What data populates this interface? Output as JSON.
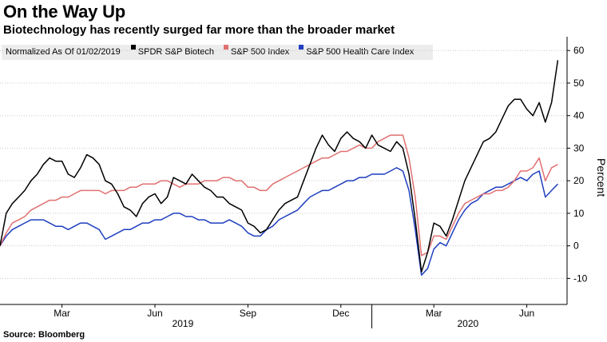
{
  "chart_data": {
    "type": "line",
    "title": "On the Way Up",
    "subtitle": "Biotechnology has recently surged far more than the broader market",
    "legend_prefix": "Normalized As Of 01/02/2019",
    "ylabel": "Percent",
    "ylim": [
      -18,
      63
    ],
    "xlim": [
      0,
      18.3
    ],
    "y_ticks": [
      -10,
      0,
      10,
      20,
      30,
      40,
      50,
      60
    ],
    "x_ticks": [
      {
        "label": "Mar",
        "x": 2
      },
      {
        "label": "Jun",
        "x": 5
      },
      {
        "label": "Sep",
        "x": 8
      },
      {
        "label": "Dec",
        "x": 11
      },
      {
        "label": "Mar",
        "x": 14
      },
      {
        "label": "Jun",
        "x": 17
      }
    ],
    "x_groups": [
      {
        "label": "2019",
        "x": 5.9
      },
      {
        "label": "2020",
        "x": 15.1
      }
    ],
    "year_divider_x": 12,
    "series": [
      {
        "name": "SPDR S&P Biotech",
        "color": "#000000",
        "x": [
          0,
          0.2,
          0.4,
          0.6,
          0.8,
          1.0,
          1.2,
          1.4,
          1.6,
          1.8,
          2.0,
          2.2,
          2.4,
          2.6,
          2.8,
          3.0,
          3.2,
          3.4,
          3.6,
          3.8,
          4.0,
          4.2,
          4.4,
          4.6,
          4.8,
          5.0,
          5.2,
          5.4,
          5.6,
          5.8,
          6.0,
          6.2,
          6.4,
          6.6,
          6.8,
          7.0,
          7.2,
          7.4,
          7.6,
          7.8,
          8.0,
          8.2,
          8.4,
          8.6,
          8.8,
          9.0,
          9.2,
          9.4,
          9.6,
          9.8,
          10.0,
          10.2,
          10.4,
          10.6,
          10.8,
          11.0,
          11.2,
          11.4,
          11.6,
          11.8,
          12.0,
          12.2,
          12.4,
          12.6,
          12.8,
          13.0,
          13.2,
          13.4,
          13.6,
          13.8,
          14.0,
          14.2,
          14.4,
          14.6,
          14.8,
          15.0,
          15.2,
          15.4,
          15.6,
          15.8,
          16.0,
          16.2,
          16.4,
          16.6,
          16.8,
          17.0,
          17.2,
          17.4,
          17.6,
          17.8,
          18.0
        ],
        "values": [
          0,
          10,
          13,
          15,
          17,
          20,
          22,
          25,
          27,
          26,
          26,
          22,
          21,
          24,
          28,
          27,
          25,
          20,
          19,
          16,
          12,
          11,
          9,
          13,
          15,
          16,
          13,
          15,
          21,
          20,
          19,
          22,
          20,
          18,
          17,
          15,
          15,
          13,
          12,
          11,
          7,
          6,
          4,
          5,
          8,
          11,
          13,
          14,
          15,
          20,
          25,
          30,
          34,
          31,
          29,
          33,
          35,
          33,
          32,
          30,
          34,
          31,
          30,
          29,
          32,
          30,
          22,
          8,
          -8,
          -2,
          7,
          6,
          3,
          8,
          14,
          20,
          24,
          28,
          32,
          33,
          35,
          39,
          43,
          45,
          45,
          42,
          40,
          44,
          38,
          44,
          57
        ]
      },
      {
        "name": "S&P 500 Index",
        "color": "#e07070",
        "x": [
          0,
          0.2,
          0.4,
          0.6,
          0.8,
          1.0,
          1.2,
          1.4,
          1.6,
          1.8,
          2.0,
          2.2,
          2.4,
          2.6,
          2.8,
          3.0,
          3.2,
          3.4,
          3.6,
          3.8,
          4.0,
          4.2,
          4.4,
          4.6,
          4.8,
          5.0,
          5.2,
          5.4,
          5.6,
          5.8,
          6.0,
          6.2,
          6.4,
          6.6,
          6.8,
          7.0,
          7.2,
          7.4,
          7.6,
          7.8,
          8.0,
          8.2,
          8.4,
          8.6,
          8.8,
          9.0,
          9.2,
          9.4,
          9.6,
          9.8,
          10.0,
          10.2,
          10.4,
          10.6,
          10.8,
          11.0,
          11.2,
          11.4,
          11.6,
          11.8,
          12.0,
          12.2,
          12.4,
          12.6,
          12.8,
          13.0,
          13.2,
          13.4,
          13.6,
          13.8,
          14.0,
          14.2,
          14.4,
          14.6,
          14.8,
          15.0,
          15.2,
          15.4,
          15.6,
          15.8,
          16.0,
          16.2,
          16.4,
          16.6,
          16.8,
          17.0,
          17.2,
          17.4,
          17.6,
          17.8,
          18.0
        ],
        "values": [
          0,
          4,
          7,
          8,
          9,
          11,
          12,
          13,
          14,
          14,
          15,
          15,
          16,
          17,
          17,
          17,
          17,
          16,
          17,
          17,
          17,
          18,
          18,
          19,
          19,
          19,
          20,
          20,
          19,
          18,
          19,
          19,
          19,
          20,
          20,
          20,
          21,
          21,
          20,
          20,
          18,
          18,
          17,
          17,
          19,
          20,
          21,
          22,
          23,
          24,
          25,
          26,
          27,
          27,
          28,
          29,
          29,
          30,
          31,
          30,
          30,
          32,
          33,
          34,
          34,
          34,
          27,
          15,
          -3,
          -2,
          3,
          3,
          2,
          6,
          10,
          13,
          14,
          15,
          16,
          16,
          17,
          17,
          18,
          20,
          23,
          23,
          24,
          27,
          20,
          24,
          25
        ]
      },
      {
        "name": "S&P 500 Health Care Index",
        "color": "#1f3fbf",
        "x": [
          0,
          0.2,
          0.4,
          0.6,
          0.8,
          1.0,
          1.2,
          1.4,
          1.6,
          1.8,
          2.0,
          2.2,
          2.4,
          2.6,
          2.8,
          3.0,
          3.2,
          3.4,
          3.6,
          3.8,
          4.0,
          4.2,
          4.4,
          4.6,
          4.8,
          5.0,
          5.2,
          5.4,
          5.6,
          5.8,
          6.0,
          6.2,
          6.4,
          6.6,
          6.8,
          7.0,
          7.2,
          7.4,
          7.6,
          7.8,
          8.0,
          8.2,
          8.4,
          8.6,
          8.8,
          9.0,
          9.2,
          9.4,
          9.6,
          9.8,
          10.0,
          10.2,
          10.4,
          10.6,
          10.8,
          11.0,
          11.2,
          11.4,
          11.6,
          11.8,
          12.0,
          12.2,
          12.4,
          12.6,
          12.8,
          13.0,
          13.2,
          13.4,
          13.6,
          13.8,
          14.0,
          14.2,
          14.4,
          14.6,
          14.8,
          15.0,
          15.2,
          15.4,
          15.6,
          15.8,
          16.0,
          16.2,
          16.4,
          16.6,
          16.8,
          17.0,
          17.2,
          17.4,
          17.6,
          17.8,
          18.0
        ],
        "values": [
          0,
          3,
          5,
          6,
          7,
          8,
          8,
          8,
          7,
          6,
          6,
          5,
          6,
          7,
          7,
          6,
          5,
          2,
          3,
          4,
          5,
          5,
          6,
          7,
          7,
          8,
          8,
          9,
          10,
          10,
          9,
          9,
          8,
          8,
          7,
          7,
          7,
          8,
          7,
          6,
          4,
          3,
          3,
          5,
          6,
          8,
          9,
          10,
          11,
          13,
          15,
          16,
          17,
          17,
          18,
          19,
          20,
          20,
          21,
          21,
          22,
          22,
          22,
          23,
          24,
          23,
          17,
          5,
          -9,
          -7,
          -1,
          1,
          0,
          4,
          8,
          11,
          13,
          14,
          16,
          17,
          18,
          18,
          19,
          20,
          21,
          20,
          22,
          23,
          15,
          17,
          19
        ]
      }
    ]
  },
  "footer": {
    "source": "Source: Bloomberg"
  }
}
